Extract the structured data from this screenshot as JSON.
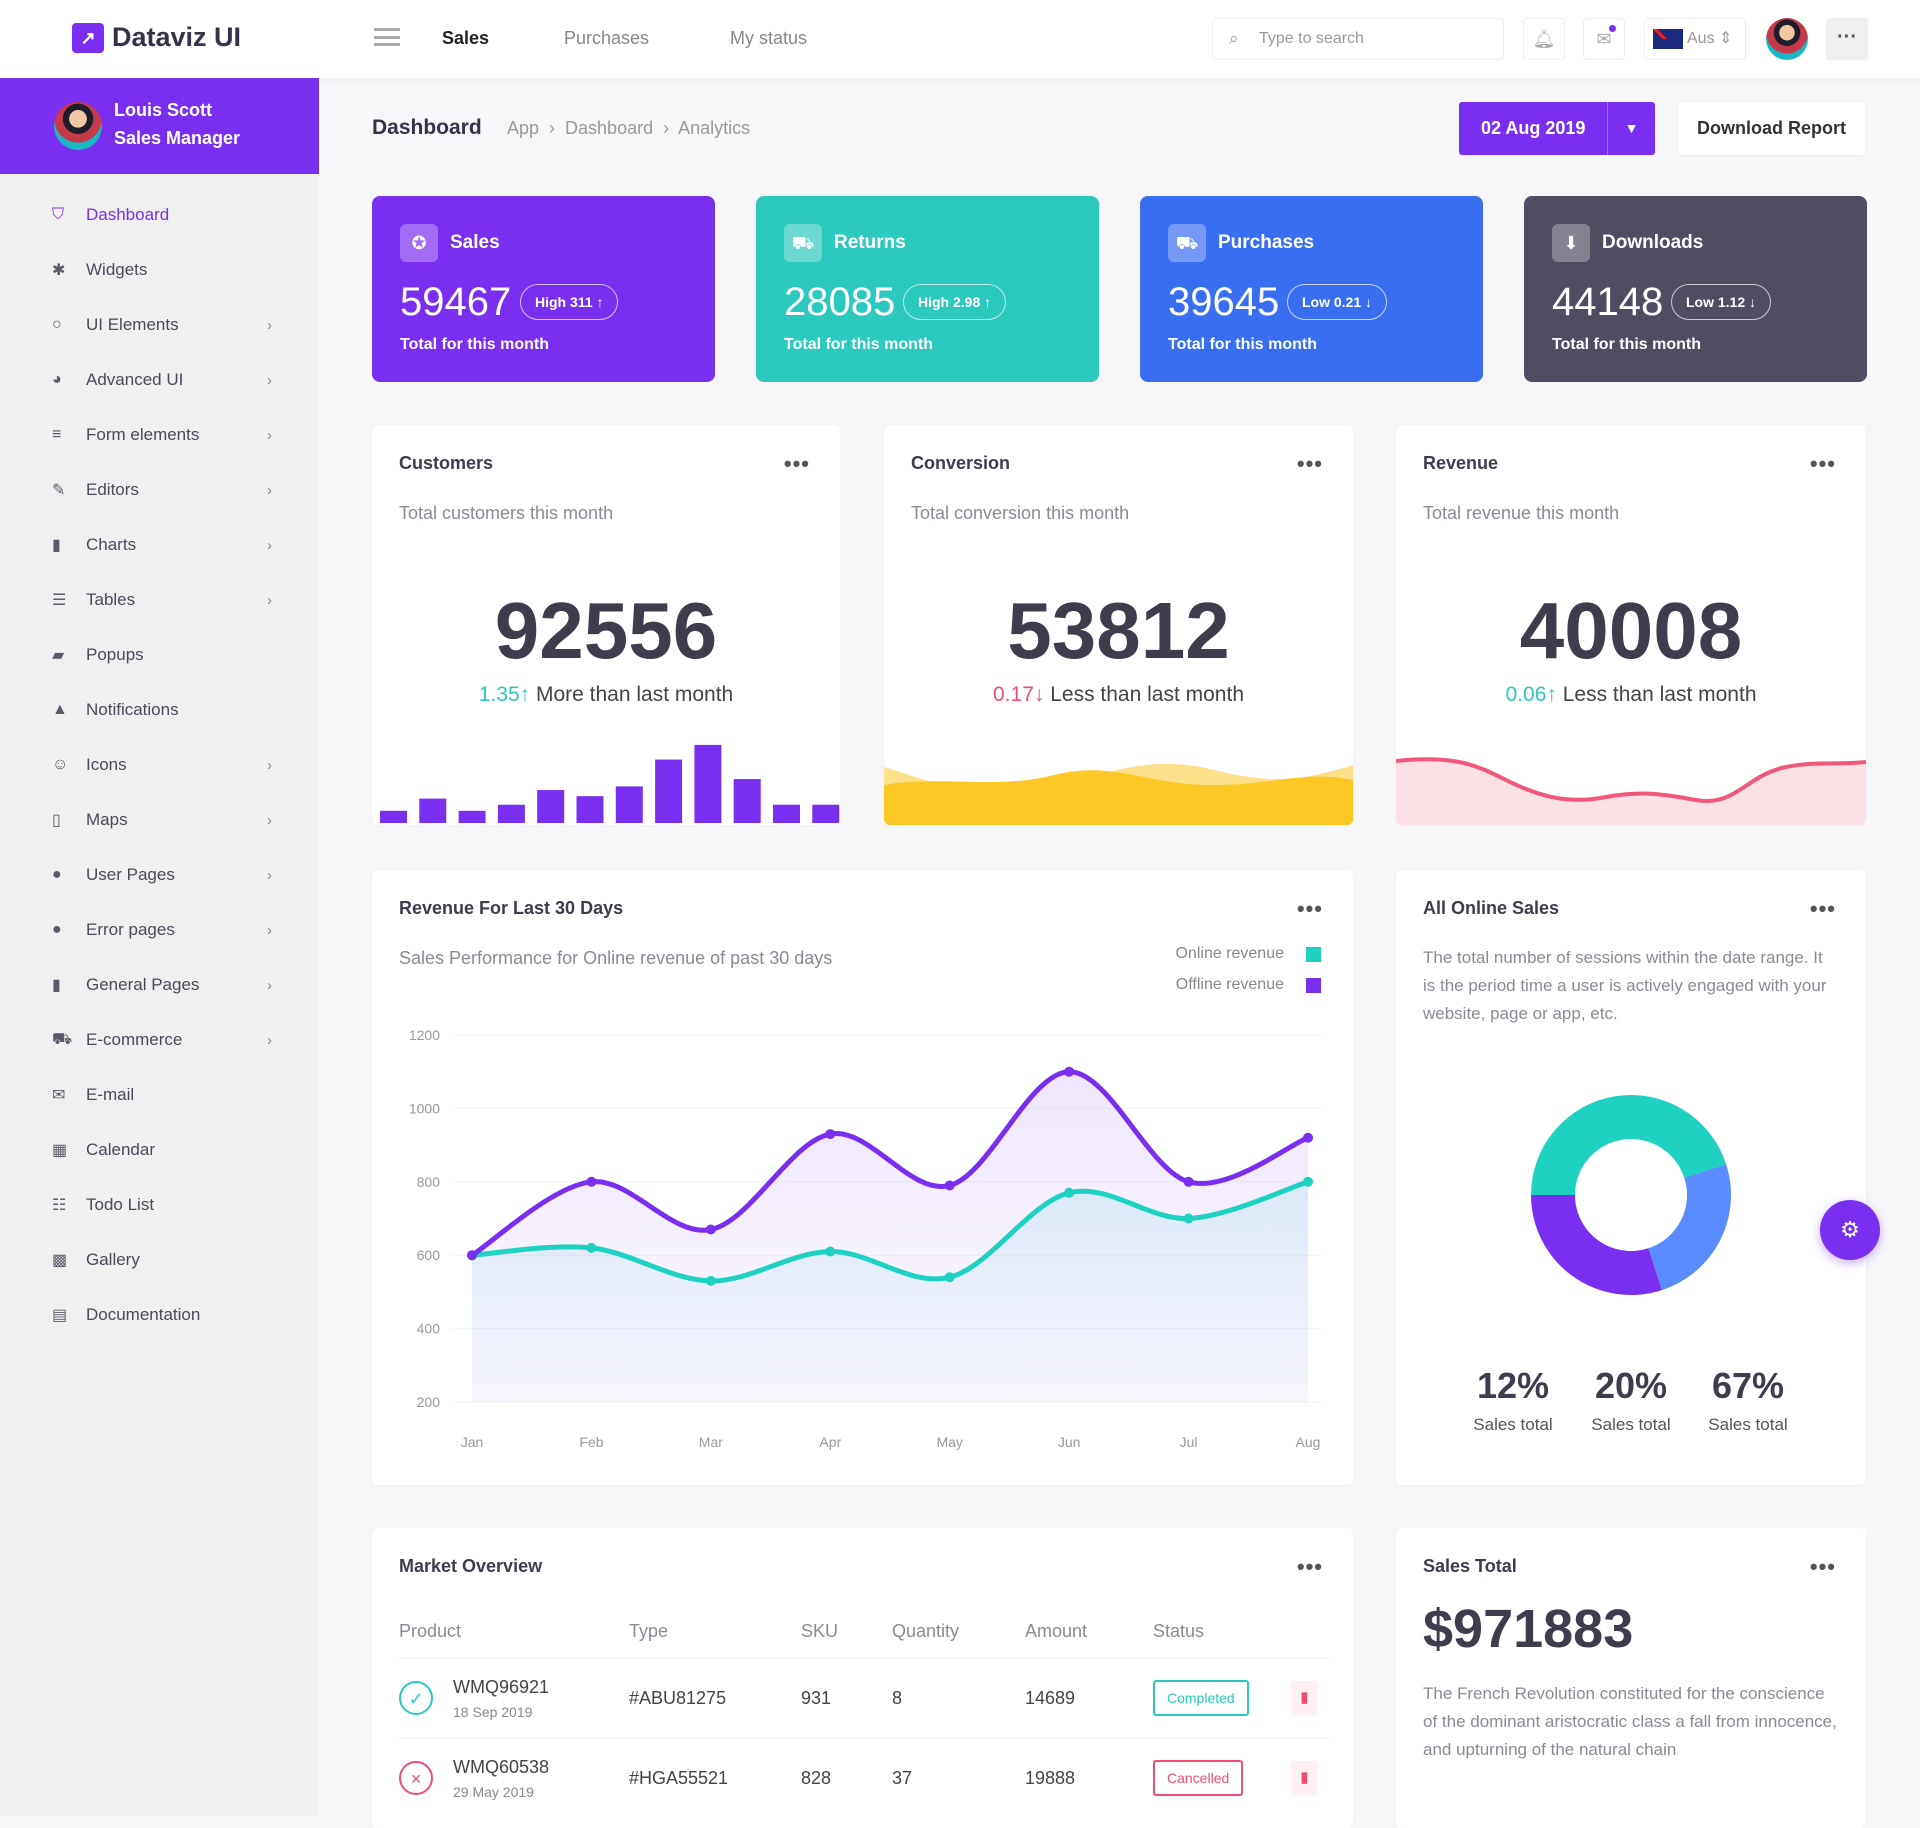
{
  "app": {
    "name": "Dataviz UI"
  },
  "topnav": {
    "items": [
      "Sales",
      "Purchases",
      "My status"
    ],
    "search_placeholder": "Type to search",
    "language": "Aus"
  },
  "user": {
    "name": "Louis Scott",
    "role": "Sales Manager"
  },
  "sidebar": {
    "items": [
      {
        "label": "Dashboard",
        "icon": "shield-icon",
        "active": true
      },
      {
        "label": "Widgets",
        "icon": "puzzle-icon"
      },
      {
        "label": "UI Elements",
        "icon": "circle-icon",
        "chevron": true
      },
      {
        "label": "Advanced UI",
        "icon": "palette-icon",
        "chevron": true
      },
      {
        "label": "Form elements",
        "icon": "list-icon",
        "chevron": true
      },
      {
        "label": "Editors",
        "icon": "pencil-icon",
        "chevron": true
      },
      {
        "label": "Charts",
        "icon": "bar-chart-icon",
        "chevron": true
      },
      {
        "label": "Tables",
        "icon": "table-icon",
        "chevron": true
      },
      {
        "label": "Popups",
        "icon": "comment-icon"
      },
      {
        "label": "Notifications",
        "icon": "bell-icon"
      },
      {
        "label": "Icons",
        "icon": "smile-icon",
        "chevron": true
      },
      {
        "label": "Maps",
        "icon": "map-icon",
        "chevron": true
      },
      {
        "label": "User Pages",
        "icon": "user-icon",
        "chevron": true
      },
      {
        "label": "Error pages",
        "icon": "alert-icon",
        "chevron": true
      },
      {
        "label": "General Pages",
        "icon": "file-icon",
        "chevron": true
      },
      {
        "label": "E-commerce",
        "icon": "basket-icon",
        "chevron": true
      },
      {
        "label": "E-mail",
        "icon": "envelope-icon"
      },
      {
        "label": "Calendar",
        "icon": "calendar-icon"
      },
      {
        "label": "Todo List",
        "icon": "checklist-icon"
      },
      {
        "label": "Gallery",
        "icon": "image-icon"
      },
      {
        "label": "Documentation",
        "icon": "document-icon"
      }
    ]
  },
  "header": {
    "title": "Dashboard",
    "breadcrumb": [
      "App",
      "Dashboard",
      "Analytics"
    ],
    "date": "02 Aug 2019",
    "download": "Download Report"
  },
  "stats": [
    {
      "title": "Sales",
      "value": "59467",
      "badge": "High  311 ↑",
      "sub": "Total for this month",
      "color": "#7a2ff0",
      "icon": "star-icon"
    },
    {
      "title": "Returns",
      "value": "28085",
      "badge": "High  2.98 ↑",
      "sub": "Total for this month",
      "color": "#2bc9be",
      "icon": "truck-icon"
    },
    {
      "title": "Purchases",
      "value": "39645",
      "badge": "Low  0.21 ↓",
      "sub": "Total for this month",
      "color": "#3a6ef0",
      "icon": "basket-icon"
    },
    {
      "title": "Downloads",
      "value": "44148",
      "badge": "Low  1.12 ↓",
      "sub": "Total for this month",
      "color": "#4f4d62",
      "icon": "download-icon"
    }
  ],
  "metrics": [
    {
      "title": "Customers",
      "sub": "Total customers this month",
      "value": "92556",
      "delta": "1.35",
      "arrow": "↑",
      "note": "More than last month",
      "bars": [
        10,
        20,
        10,
        15,
        27,
        22,
        30,
        52,
        64,
        36,
        15,
        15
      ]
    },
    {
      "title": "Conversion",
      "sub": "Total conversion this month",
      "value": "53812",
      "delta": "0.17",
      "arrow": "↓",
      "note": "Less than last month"
    },
    {
      "title": "Revenue",
      "sub": "Total revenue this month",
      "value": "40008",
      "delta": "0.06",
      "arrow": "↑",
      "note": "Less than last month"
    }
  ],
  "revenue": {
    "title": "Revenue For Last 30 Days",
    "sub": "Sales Performance for Online revenue of past 30 days"
  },
  "chart_data": {
    "type": "line",
    "categories": [
      "Jan",
      "Feb",
      "Mar",
      "Apr",
      "May",
      "Jun",
      "Jul",
      "Aug"
    ],
    "ylim": [
      200,
      1200
    ],
    "yticks": [
      "1200",
      "1000",
      "800",
      "600",
      "400",
      "200"
    ],
    "grid": true,
    "legend": "top-right",
    "series": [
      {
        "name": "Online revenue",
        "color": "#1fd1c1",
        "values": [
          600,
          620,
          530,
          610,
          540,
          770,
          700,
          800
        ]
      },
      {
        "name": "Offline revenue",
        "color": "#7a2ff0",
        "values": [
          600,
          800,
          670,
          930,
          790,
          1100,
          800,
          920
        ]
      }
    ]
  },
  "online_sales": {
    "title": "All Online Sales",
    "desc": "The total number of sessions within the date range. It is the period time a user is actively engaged with your website, page or app, etc.",
    "donut": [
      {
        "value": 45,
        "color": "#1fd1c1"
      },
      {
        "value": 25,
        "color": "#5b8cff"
      },
      {
        "value": 30,
        "color": "#7a2ff0"
      }
    ],
    "totals": [
      {
        "pct": "12%",
        "label": "Sales total"
      },
      {
        "pct": "20%",
        "label": "Sales total"
      },
      {
        "pct": "67%",
        "label": "Sales total"
      }
    ]
  },
  "market": {
    "title": "Market Overview",
    "columns": [
      "Product",
      "Type",
      "SKU",
      "Quantity",
      "Amount",
      "Status"
    ],
    "rows": [
      {
        "product": "WMQ96921",
        "date": "18 Sep 2019",
        "type": "#ABU81275",
        "sku": "931",
        "qty": "8",
        "amount": "14689",
        "status": "Completed",
        "ok": true
      },
      {
        "product": "WMQ60538",
        "date": "29 May 2019",
        "type": "#HGA55521",
        "sku": "828",
        "qty": "37",
        "amount": "19888",
        "status": "Cancelled",
        "ok": false
      }
    ]
  },
  "sales_total": {
    "title": "Sales Total",
    "value": "$971883",
    "desc": "The French Revolution constituted for the conscience of the dominant aristocratic class a fall from innocence, and upturning of the natural chain"
  }
}
